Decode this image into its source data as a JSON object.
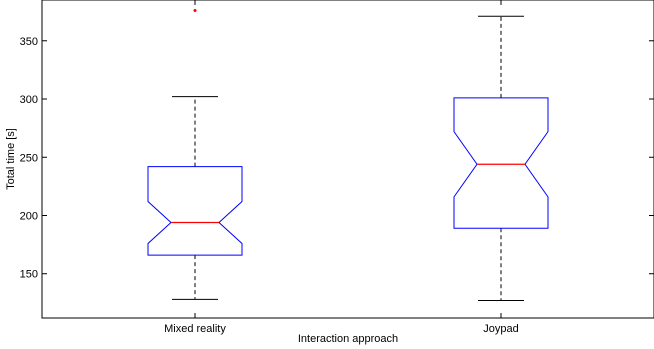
{
  "chart_data": {
    "type": "boxplot",
    "notched": true,
    "xlabel": "Interaction approach",
    "ylabel": "Total time [s]",
    "ylim": [
      112,
      385
    ],
    "yticks": [
      150,
      200,
      250,
      300,
      350
    ],
    "grid": false,
    "categories": [
      "Mixed reality",
      "Joypad"
    ],
    "boxes": [
      {
        "category": "Mixed reality",
        "whisker_low": 128,
        "q1": 166,
        "median": 194,
        "q3": 242,
        "whisker_high": 302,
        "notch_low": 176,
        "notch_high": 212,
        "outliers": [
          376
        ]
      },
      {
        "category": "Joypad",
        "whisker_low": 127,
        "q1": 189,
        "median": 244,
        "q3": 301,
        "whisker_high": 371,
        "notch_low": 216,
        "notch_high": 272,
        "outliers": []
      }
    ],
    "colors": {
      "box": "#0000ff",
      "median": "#ff0000",
      "whisker": "#000000",
      "outlier": "#ff0000",
      "axes": "#000000"
    }
  }
}
